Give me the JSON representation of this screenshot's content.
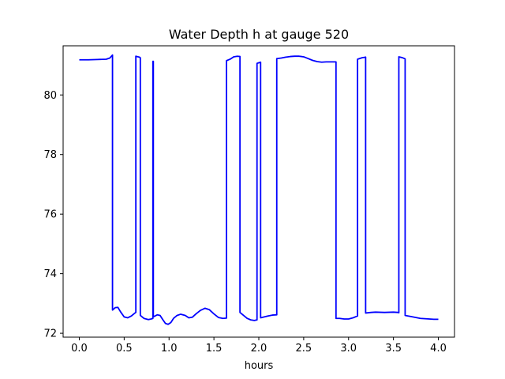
{
  "chart_data": {
    "type": "line",
    "title": "Water Depth h at gauge 520",
    "xlabel": "hours",
    "ylabel": "",
    "xlim": [
      -0.18,
      4.18
    ],
    "ylim": [
      71.87,
      81.65
    ],
    "xticks": [
      0.0,
      0.5,
      1.0,
      1.5,
      2.0,
      2.5,
      3.0,
      3.5,
      4.0
    ],
    "xtick_labels": [
      "0.0",
      "0.5",
      "1.0",
      "1.5",
      "2.0",
      "2.5",
      "3.0",
      "3.5",
      "4.0"
    ],
    "yticks": [
      72,
      74,
      76,
      78,
      80
    ],
    "ytick_labels": [
      "72",
      "74",
      "76",
      "78",
      "80"
    ],
    "grid": false,
    "line_color": "#0000ff",
    "series": [
      {
        "name": "",
        "points": [
          [
            0.0,
            81.18
          ],
          [
            0.1,
            81.18
          ],
          [
            0.2,
            81.19
          ],
          [
            0.3,
            81.2
          ],
          [
            0.34,
            81.24
          ],
          [
            0.37,
            81.34
          ],
          [
            0.37,
            72.78
          ],
          [
            0.4,
            72.86
          ],
          [
            0.43,
            72.87
          ],
          [
            0.46,
            72.72
          ],
          [
            0.5,
            72.55
          ],
          [
            0.54,
            72.52
          ],
          [
            0.58,
            72.58
          ],
          [
            0.62,
            72.68
          ],
          [
            0.63,
            72.7
          ],
          [
            0.63,
            81.3
          ],
          [
            0.67,
            81.27
          ],
          [
            0.68,
            81.25
          ],
          [
            0.68,
            72.6
          ],
          [
            0.72,
            72.5
          ],
          [
            0.77,
            72.46
          ],
          [
            0.8,
            72.48
          ],
          [
            0.82,
            72.5
          ],
          [
            0.82,
            81.13
          ],
          [
            0.825,
            81.13
          ],
          [
            0.825,
            72.55
          ],
          [
            0.87,
            72.62
          ],
          [
            0.9,
            72.6
          ],
          [
            0.93,
            72.46
          ],
          [
            0.96,
            72.33
          ],
          [
            0.99,
            72.3
          ],
          [
            1.02,
            72.36
          ],
          [
            1.05,
            72.5
          ],
          [
            1.09,
            72.6
          ],
          [
            1.13,
            72.64
          ],
          [
            1.18,
            72.6
          ],
          [
            1.22,
            72.52
          ],
          [
            1.26,
            72.54
          ],
          [
            1.3,
            72.65
          ],
          [
            1.35,
            72.77
          ],
          [
            1.4,
            72.84
          ],
          [
            1.45,
            72.79
          ],
          [
            1.5,
            72.65
          ],
          [
            1.55,
            72.53
          ],
          [
            1.6,
            72.5
          ],
          [
            1.64,
            72.51
          ],
          [
            1.64,
            81.15
          ],
          [
            1.68,
            81.2
          ],
          [
            1.72,
            81.28
          ],
          [
            1.76,
            81.3
          ],
          [
            1.79,
            81.29
          ],
          [
            1.79,
            72.7
          ],
          [
            1.83,
            72.6
          ],
          [
            1.87,
            72.5
          ],
          [
            1.91,
            72.45
          ],
          [
            1.95,
            72.43
          ],
          [
            1.98,
            72.45
          ],
          [
            1.98,
            81.06
          ],
          [
            2.02,
            81.1
          ],
          [
            2.02,
            72.52
          ],
          [
            2.06,
            72.55
          ],
          [
            2.1,
            72.58
          ],
          [
            2.15,
            72.61
          ],
          [
            2.2,
            72.62
          ],
          [
            2.2,
            81.22
          ],
          [
            2.25,
            81.24
          ],
          [
            2.3,
            81.27
          ],
          [
            2.35,
            81.29
          ],
          [
            2.4,
            81.3
          ],
          [
            2.45,
            81.3
          ],
          [
            2.5,
            81.28
          ],
          [
            2.55,
            81.22
          ],
          [
            2.6,
            81.16
          ],
          [
            2.65,
            81.12
          ],
          [
            2.7,
            81.1
          ],
          [
            2.75,
            81.11
          ],
          [
            2.8,
            81.11
          ],
          [
            2.86,
            81.11
          ],
          [
            2.86,
            72.5
          ],
          [
            2.9,
            72.5
          ],
          [
            2.95,
            72.48
          ],
          [
            3.0,
            72.48
          ],
          [
            3.05,
            72.52
          ],
          [
            3.1,
            72.58
          ],
          [
            3.1,
            81.2
          ],
          [
            3.15,
            81.25
          ],
          [
            3.19,
            81.27
          ],
          [
            3.19,
            72.68
          ],
          [
            3.25,
            72.7
          ],
          [
            3.3,
            72.71
          ],
          [
            3.4,
            72.7
          ],
          [
            3.5,
            72.71
          ],
          [
            3.55,
            72.7
          ],
          [
            3.56,
            72.69
          ],
          [
            3.56,
            81.28
          ],
          [
            3.6,
            81.25
          ],
          [
            3.63,
            81.21
          ],
          [
            3.63,
            72.6
          ],
          [
            3.7,
            72.56
          ],
          [
            3.8,
            72.5
          ],
          [
            3.9,
            72.48
          ],
          [
            3.95,
            72.47
          ],
          [
            4.0,
            72.47
          ]
        ]
      }
    ]
  }
}
